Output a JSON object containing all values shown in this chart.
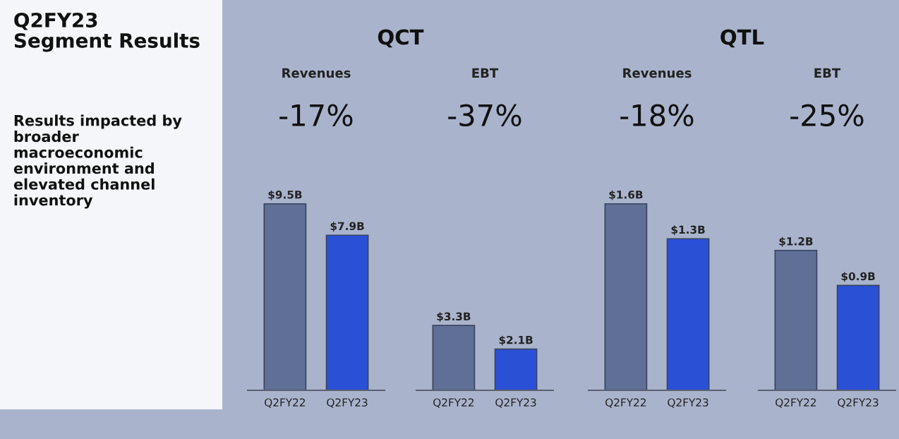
{
  "chart_data": [
    {
      "type": "other",
      "title": "Q2FY23\nSegment Results",
      "annotations": [
        "Results impacted by\nbroader\nmacroeconomic\nenvironment and\nelevated channel\ninventory"
      ]
    },
    {
      "type": "other",
      "title": "QCT"
    },
    {
      "type": "bar",
      "title": "Revenues",
      "annotations": [
        "-17%"
      ],
      "categories": [
        "Q2FY22",
        "Q2FY23"
      ],
      "values": [
        9.5,
        7.9
      ],
      "colors": [
        "#5f6f96",
        "#2a50d6"
      ],
      "value_labels": [
        "$9.5B",
        "$7.9B"
      ]
    },
    {
      "type": "bar",
      "title": "EBT",
      "annotations": [
        "-37%"
      ],
      "categories": [
        "Q2FY22",
        "Q2FY23"
      ],
      "values": [
        3.3,
        2.1
      ],
      "colors": [
        "#5f6f96",
        "#2a50d6"
      ],
      "value_labels": [
        "$3.3B",
        "$2.1B"
      ]
    },
    {
      "type": "other",
      "title": "QTL"
    },
    {
      "type": "bar",
      "title": "Revenues",
      "annotations": [
        "-18%"
      ],
      "categories": [
        "Q2FY22",
        "Q2FY23"
      ],
      "values": [
        1.6,
        1.3
      ],
      "colors": [
        "#5f6f96",
        "#2a50d6"
      ],
      "value_labels": [
        "$1.6B",
        "$1.3B"
      ]
    },
    {
      "type": "bar",
      "title": "EBT",
      "annotations": [
        "-25%"
      ],
      "categories": [
        "Q2FY22",
        "Q2FY23"
      ],
      "values": [
        1.2,
        0.9
      ],
      "colors": [
        "#5f6f96",
        "#2a50d6"
      ],
      "value_labels": [
        "$1.2B",
        "$0.9B"
      ]
    }
  ]
}
